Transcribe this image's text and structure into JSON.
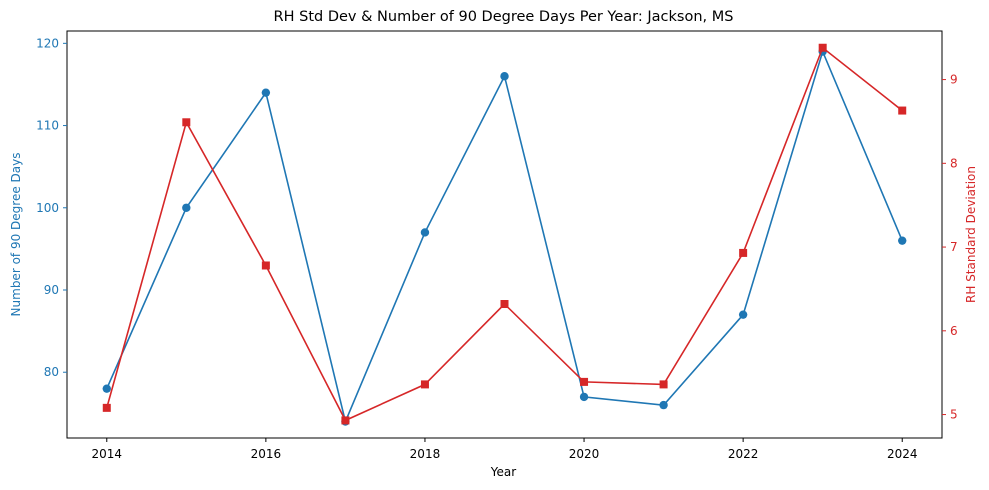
{
  "chart_data": {
    "type": "line",
    "title": "RH Std Dev & Number of 90 Degree Days Per Year: Jackson, MS",
    "xlabel": "Year",
    "x": [
      2014,
      2015,
      2016,
      2017,
      2018,
      2019,
      2020,
      2021,
      2022,
      2023,
      2024
    ],
    "xlim": [
      2013.5,
      2024.5
    ],
    "xticks": [
      2014,
      2016,
      2018,
      2020,
      2022,
      2024
    ],
    "grid": false,
    "axes": {
      "left": {
        "label": "Number of 90 Degree Days",
        "color": "#1f77b4",
        "ylim": [
          72,
          121.5
        ],
        "ticks": [
          80,
          90,
          100,
          110,
          120
        ]
      },
      "right": {
        "label": "RH Standard Deviation",
        "color": "#d62728",
        "ylim": [
          4.72,
          9.58
        ],
        "ticks": [
          5,
          6,
          7,
          8,
          9
        ]
      }
    },
    "series": [
      {
        "axis": "left",
        "color": "#1f77b4",
        "marker": "circle",
        "values": [
          78,
          100,
          114,
          74,
          97,
          116,
          77,
          76,
          87,
          119,
          96
        ]
      },
      {
        "axis": "right",
        "color": "#d62728",
        "marker": "square",
        "values": [
          5.08,
          8.49,
          6.78,
          4.93,
          5.36,
          6.32,
          5.39,
          5.36,
          6.93,
          9.38,
          8.63
        ]
      }
    ]
  }
}
